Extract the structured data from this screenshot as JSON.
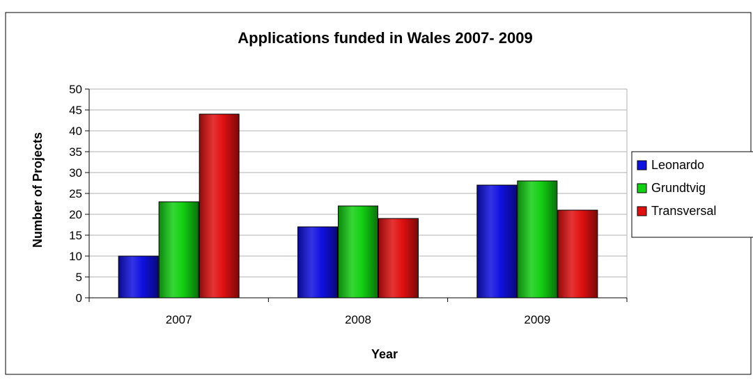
{
  "chart_data": {
    "type": "bar",
    "title": "Applications funded in Wales 2007- 2009",
    "xlabel": "Year",
    "ylabel": "Number of Projects",
    "categories": [
      "2007",
      "2008",
      "2009"
    ],
    "series": [
      {
        "name": "Leonardo",
        "values": [
          10,
          17,
          27
        ],
        "color": "#1010e0"
      },
      {
        "name": "Grundtvig",
        "values": [
          23,
          22,
          28
        ],
        "color": "#12d012"
      },
      {
        "name": "Transversal",
        "values": [
          44,
          19,
          21
        ],
        "color": "#e01010"
      }
    ],
    "ylim": [
      0,
      50
    ],
    "yticks": [
      "0",
      "5",
      "10",
      "15",
      "20",
      "25",
      "30",
      "35",
      "40",
      "45",
      "50"
    ],
    "grid": true,
    "legend": "right"
  }
}
